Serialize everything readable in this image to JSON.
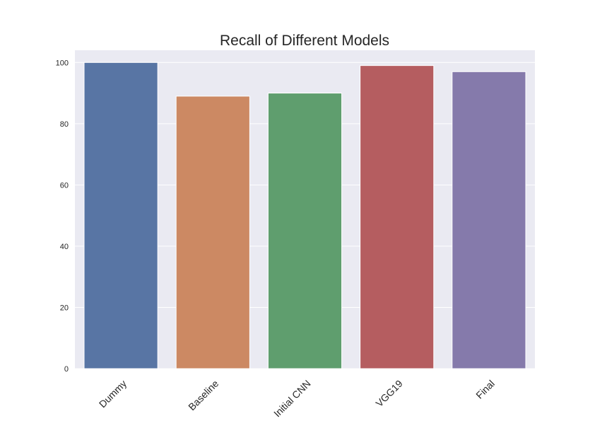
{
  "chart_data": {
    "type": "bar",
    "title": "Recall of Different Models",
    "xlabel": "",
    "ylabel": "",
    "categories": [
      "Dummy",
      "Baseline",
      "Initial CNN",
      "VGG19",
      "Final"
    ],
    "values": [
      100,
      89,
      90,
      99,
      97
    ],
    "ylim": [
      0,
      104
    ],
    "yticks": [
      "0",
      "20",
      "40",
      "60",
      "80",
      "100"
    ],
    "grid": true,
    "legend": "none",
    "colors": [
      "#5875a4",
      "#cc8963",
      "#5f9e6e",
      "#b55d60",
      "#857aab"
    ],
    "background": "#eaeaf2"
  }
}
